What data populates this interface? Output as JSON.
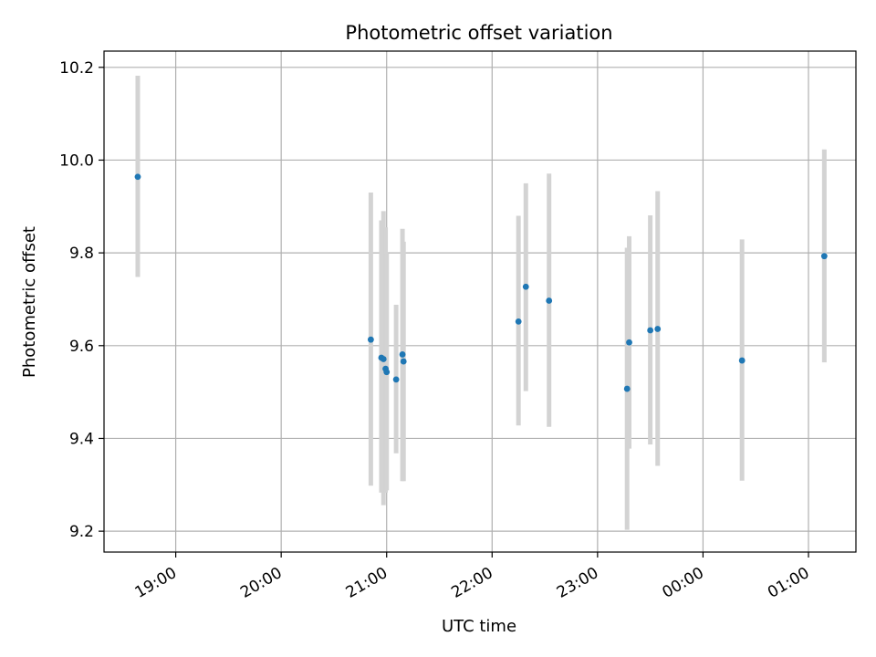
{
  "chart_data": {
    "type": "scatter",
    "title": "Photometric offset variation",
    "xlabel": "UTC time",
    "ylabel": "Photometric offset",
    "x_unit": "hours since 18:00 UTC",
    "xlim": [
      0.32,
      7.45
    ],
    "ylim": [
      9.155,
      10.235
    ],
    "grid": true,
    "colors": {
      "point": "#1f77b4",
      "errorbar": "#d3d3d3",
      "grid": "#b0b0b0"
    },
    "xticks": [
      {
        "value": 1,
        "label": "19:00"
      },
      {
        "value": 2,
        "label": "20:00"
      },
      {
        "value": 3,
        "label": "21:00"
      },
      {
        "value": 4,
        "label": "22:00"
      },
      {
        "value": 5,
        "label": "23:00"
      },
      {
        "value": 6,
        "label": "00:00"
      },
      {
        "value": 7,
        "label": "01:00"
      }
    ],
    "yticks": [
      {
        "value": 9.2,
        "label": "9.2"
      },
      {
        "value": 9.4,
        "label": "9.4"
      },
      {
        "value": 9.6,
        "label": "9.6"
      },
      {
        "value": 9.8,
        "label": "9.8"
      },
      {
        "value": 10.0,
        "label": "10.0"
      },
      {
        "value": 10.2,
        "label": "10.2"
      }
    ],
    "series": [
      {
        "name": "offset",
        "points": [
          {
            "x": 0.64,
            "y": 9.964,
            "err_low": 9.748,
            "err_high": 10.182
          },
          {
            "x": 2.85,
            "y": 9.613,
            "err_low": 9.298,
            "err_high": 9.93
          },
          {
            "x": 2.95,
            "y": 9.574,
            "err_low": 9.283,
            "err_high": 9.87
          },
          {
            "x": 2.97,
            "y": 9.571,
            "err_low": 9.256,
            "err_high": 9.89
          },
          {
            "x": 2.99,
            "y": 9.55,
            "err_low": 9.283,
            "err_high": 9.855
          },
          {
            "x": 3.0,
            "y": 9.543,
            "err_low": 9.288,
            "err_high": 9.8
          },
          {
            "x": 3.09,
            "y": 9.527,
            "err_low": 9.368,
            "err_high": 9.688
          },
          {
            "x": 3.15,
            "y": 9.581,
            "err_low": 9.308,
            "err_high": 9.852
          },
          {
            "x": 3.16,
            "y": 9.566,
            "err_low": 9.308,
            "err_high": 9.824
          },
          {
            "x": 4.25,
            "y": 9.652,
            "err_low": 9.428,
            "err_high": 9.88
          },
          {
            "x": 4.32,
            "y": 9.727,
            "err_low": 9.502,
            "err_high": 9.95
          },
          {
            "x": 4.54,
            "y": 9.697,
            "err_low": 9.425,
            "err_high": 9.971
          },
          {
            "x": 5.28,
            "y": 9.507,
            "err_low": 9.203,
            "err_high": 9.811
          },
          {
            "x": 5.3,
            "y": 9.607,
            "err_low": 9.378,
            "err_high": 9.836
          },
          {
            "x": 5.5,
            "y": 9.633,
            "err_low": 9.387,
            "err_high": 9.881
          },
          {
            "x": 5.57,
            "y": 9.636,
            "err_low": 9.341,
            "err_high": 9.933
          },
          {
            "x": 6.37,
            "y": 9.568,
            "err_low": 9.309,
            "err_high": 9.829
          },
          {
            "x": 7.15,
            "y": 9.793,
            "err_low": 9.564,
            "err_high": 10.023
          }
        ]
      }
    ]
  }
}
